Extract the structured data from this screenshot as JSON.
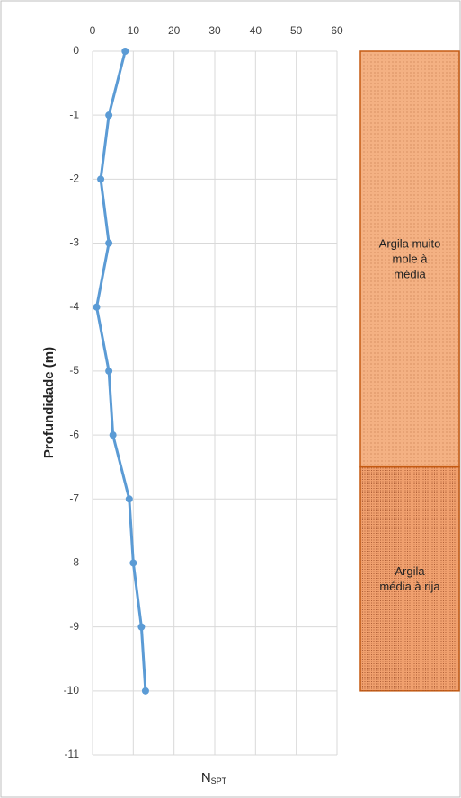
{
  "chart_data": {
    "type": "line",
    "x_label": "N",
    "x_label_sub": "SPT",
    "y_label": "Profundidade (m)",
    "depth": [
      0,
      -1,
      -2,
      -3,
      -4,
      -5,
      -6,
      -7,
      -8,
      -9,
      -10
    ],
    "series": [
      {
        "name": "NSPT",
        "color": "#5b9bd5",
        "values": [
          8,
          4,
          2,
          4,
          1,
          4,
          5,
          9,
          10,
          12,
          13
        ]
      }
    ],
    "xlim": [
      0,
      60
    ],
    "xticks": [
      0,
      10,
      20,
      30,
      40,
      50,
      60
    ],
    "ylim": [
      -11,
      0
    ],
    "yticks": [
      0,
      -1,
      -2,
      -3,
      -4,
      -5,
      -6,
      -7,
      -8,
      -9,
      -10,
      -11
    ],
    "grid": true,
    "layers": [
      {
        "label": "Argila muito mole à média",
        "top": 0,
        "bottom": -6.5,
        "color": "#f4b183"
      },
      {
        "label": "Argila média à rija",
        "top": -6.5,
        "bottom": -10,
        "color": "#f0a06e"
      }
    ]
  }
}
